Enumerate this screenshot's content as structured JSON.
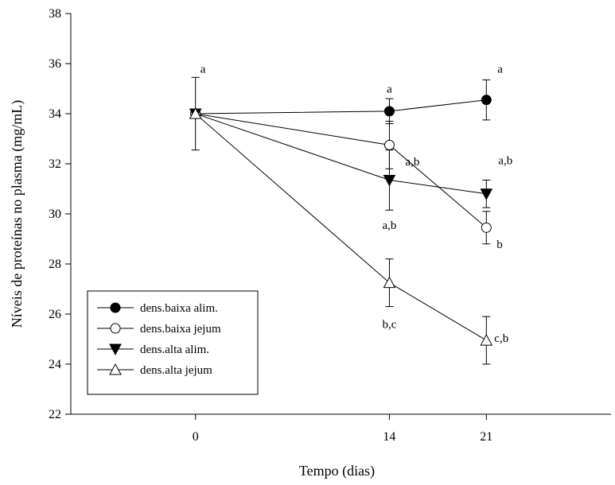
{
  "chart_data": {
    "type": "line",
    "title": "",
    "xlabel": "Tempo (dias)",
    "ylabel": "Níveis de proteínas no plasma (mg/mL)",
    "x": [
      0,
      14,
      21
    ],
    "x_tick_labels": [
      "0",
      "14",
      "21"
    ],
    "xlim": [
      -9,
      30
    ],
    "ylim": [
      22,
      38
    ],
    "y_ticks": [
      22,
      24,
      26,
      28,
      30,
      32,
      34,
      36,
      38
    ],
    "y_tick_labels": [
      "22",
      "24",
      "26",
      "28",
      "30",
      "32",
      "34",
      "36",
      "38"
    ],
    "grid": false,
    "legend_position": "bottom-left",
    "series": [
      {
        "name": "dens.baixa alim.",
        "marker": "circle-filled",
        "values": [
          34.0,
          34.1,
          34.55
        ],
        "errors": [
          null,
          0.5,
          0.8
        ]
      },
      {
        "name": "dens.baixa jejum",
        "marker": "circle-open",
        "values": [
          34.0,
          32.75,
          29.45
        ],
        "errors": [
          null,
          0.95,
          0.65
        ]
      },
      {
        "name": "dens.alta alim.",
        "marker": "triangle-down-filled",
        "values": [
          34.0,
          31.35,
          30.8
        ],
        "errors": [
          1.45,
          1.2,
          0.55
        ]
      },
      {
        "name": "dens.alta jejum",
        "marker": "triangle-up-open",
        "values": [
          34.0,
          27.25,
          24.95
        ],
        "errors": [
          null,
          0.95,
          0.95
        ]
      }
    ],
    "annotations": [
      {
        "text": "a",
        "x": 0,
        "y": 35.8
      },
      {
        "text": "a",
        "x": 14,
        "y": 35.0
      },
      {
        "text": "a",
        "x": 21,
        "y": 35.8
      },
      {
        "text": "a,b",
        "x": 14,
        "y": 32.1
      },
      {
        "text": "a,b",
        "x": 21,
        "y": 32.15
      },
      {
        "text": "b",
        "x": 21,
        "y": 28.8
      },
      {
        "text": "a,b",
        "x": 14,
        "y": 29.55
      },
      {
        "text": "b,c",
        "x": 14,
        "y": 25.6
      },
      {
        "text": "c,b",
        "x": 21,
        "y": 25.05
      }
    ]
  }
}
